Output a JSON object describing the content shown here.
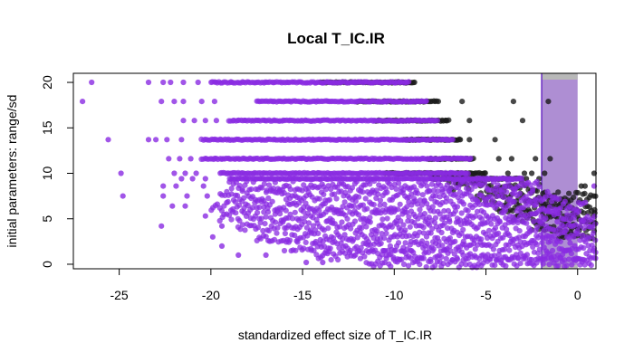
{
  "chart_data": {
    "type": "scatter",
    "title": "Local T_IC.IR",
    "xlabel": "standardized effect size of T_IC.IR",
    "ylabel": "initial parameters: range/sd",
    "xlim": [
      -27.5,
      1.0
    ],
    "ylim": [
      -0.5,
      21.0
    ],
    "x_ticks": [
      -25,
      -20,
      -15,
      -10,
      -5,
      0
    ],
    "y_ticks": [
      0,
      5,
      10,
      15,
      20
    ],
    "x_tick_labels": [
      "-25",
      "-20",
      "-15",
      "-10",
      "-5",
      "0"
    ],
    "y_tick_labels": [
      "0",
      "5",
      "10",
      "15",
      "20"
    ],
    "grid": false,
    "legend": "none",
    "shaded_region": {
      "x_from": -1.96,
      "x_to": 0.0,
      "fill_color": "#9a72c8",
      "top_band_color": "#b8b8b8",
      "border_color": "#6a2cc4"
    },
    "colors": {
      "purple_points": "#8a2be2",
      "black_points": "#1a1a1a"
    },
    "series": [
      {
        "color_key": "black_points",
        "bands": [
          {
            "y": 20.0,
            "x_from": -14.0,
            "x_to": -8.9,
            "sparse": [
              -9.5,
              -9.2,
              -8.9
            ]
          },
          {
            "y": 17.9,
            "x_from": -12.0,
            "x_to": -7.6,
            "sparse": [
              -7.6,
              -6.3,
              -3.5,
              -1.6
            ]
          },
          {
            "y": 15.8,
            "x_from": -11.0,
            "x_to": -7.0,
            "sparse": [
              -7.2,
              -5.9,
              -3.0
            ]
          },
          {
            "y": 13.7,
            "x_from": -9.5,
            "x_to": -6.4,
            "sparse": [
              -6.4,
              -5.9,
              -4.5
            ]
          },
          {
            "y": 11.6,
            "x_from": -8.2,
            "x_to": -5.6,
            "sparse": [
              -4.3,
              -3.6,
              -2.3,
              -1.5
            ]
          },
          {
            "y": 10.0,
            "x_from": -10.5,
            "x_to": -5.0,
            "sparse": [
              -3.8,
              -2.9,
              -2.5,
              -1.8,
              0.9
            ]
          },
          {
            "y": 9.4,
            "x_from": -8.0,
            "x_to": -3.0,
            "sparse": [
              -2.8,
              -2.1
            ]
          },
          {
            "y": 8.6,
            "x_from": -7.0,
            "x_to": -2.0,
            "sparse": [
              0.2,
              0.4
            ]
          },
          {
            "y": 7.4,
            "x_from": -5.5,
            "x_to": 1.0,
            "sparse": []
          },
          {
            "y": 6.3,
            "x_from": -4.5,
            "x_to": 1.0,
            "sparse": []
          },
          {
            "y": 5.2,
            "x_from": -3.5,
            "x_to": 1.0,
            "sparse": []
          },
          {
            "y": 4.2,
            "x_from": -2.5,
            "x_to": 1.0,
            "sparse": []
          },
          {
            "y": 3.2,
            "x_from": -1.0,
            "x_to": 1.0,
            "sparse": []
          }
        ]
      },
      {
        "color_key": "purple_points",
        "bands": [
          {
            "y": 20.0,
            "x_from": -20.0,
            "x_to": -9.2,
            "sparse": [
              -26.5,
              -23.4,
              -22.6,
              -22.2,
              -21.5,
              -20.7
            ]
          },
          {
            "y": 17.9,
            "x_from": -17.5,
            "x_to": -8.2,
            "sparse": [
              -27.0,
              -22.7,
              -22.0,
              -21.5,
              -20.5,
              -19.8
            ]
          },
          {
            "y": 15.8,
            "x_from": -19.0,
            "x_to": -7.6,
            "sparse": [
              -21.5,
              -20.9,
              -20.3,
              -19.7
            ]
          },
          {
            "y": 13.7,
            "x_from": -20.5,
            "x_to": -6.8,
            "sparse": [
              -25.6,
              -23.4,
              -23.0,
              -22.4,
              -21.6
            ]
          },
          {
            "y": 11.6,
            "x_from": -20.5,
            "x_to": -5.8,
            "sparse": [
              -22.3,
              -21.7,
              -21.1
            ]
          },
          {
            "y": 10.0,
            "x_from": -19.5,
            "x_to": -6.0,
            "sparse": [
              -24.9,
              -22.0,
              -21.4,
              -20.8
            ]
          },
          {
            "y": 9.4,
            "x_from": -19.0,
            "x_to": -3.0,
            "sparse": [
              -21.6,
              -21.0,
              -20.3
            ]
          },
          {
            "y": 8.6,
            "x_from": -19.0,
            "x_to": -2.0,
            "sparse": [
              -22.6,
              -21.9,
              -20.4,
              0.9
            ]
          },
          {
            "y": 7.5,
            "x_from": -19.5,
            "x_to": -1.0,
            "sparse": [
              -24.8,
              -22.6,
              -21.3,
              -20.2
            ]
          },
          {
            "y": 6.4,
            "x_from": -20.0,
            "x_to": 0.5,
            "sparse": [
              -22.1,
              -21.4
            ]
          },
          {
            "y": 5.3,
            "x_from": -19.5,
            "x_to": 1.0,
            "sparse": [
              -20.3
            ]
          },
          {
            "y": 4.2,
            "x_from": -18.5,
            "x_to": 1.0,
            "sparse": [
              -22.7,
              -19.4
            ]
          },
          {
            "y": 3.0,
            "x_from": -17.5,
            "x_to": 1.0,
            "sparse": [
              -19.9
            ]
          },
          {
            "y": 2.0,
            "x_from": -16.0,
            "x_to": 1.0,
            "sparse": [
              -19.4
            ]
          },
          {
            "y": 1.0,
            "x_from": -14.5,
            "x_to": 1.0,
            "sparse": [
              -18.5,
              -17.0
            ]
          },
          {
            "y": 0.2,
            "x_from": -11.5,
            "x_to": 1.0,
            "sparse": [
              -14.8,
              -13.9
            ]
          }
        ]
      }
    ]
  }
}
